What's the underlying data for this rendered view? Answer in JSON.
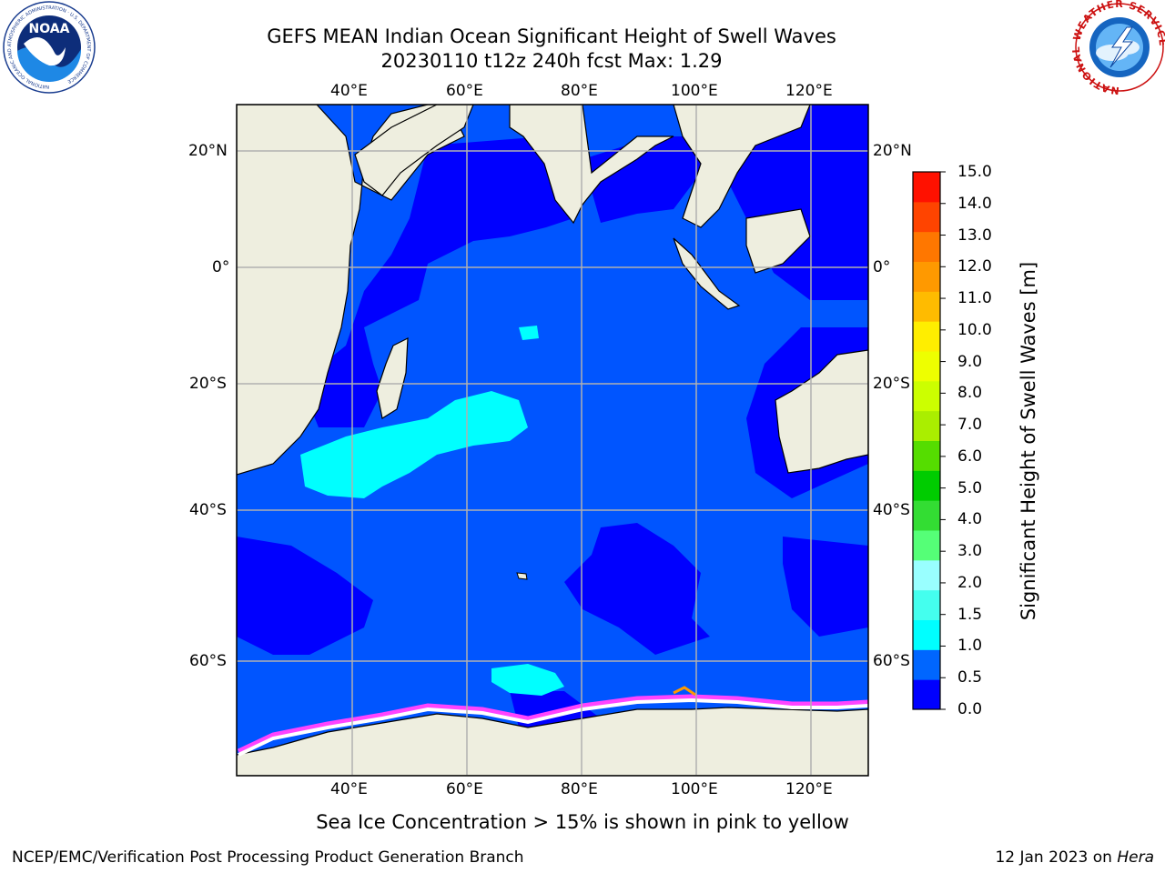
{
  "title": {
    "line1": "GEFS MEAN Indian Ocean Significant Height of Swell Waves",
    "line2": "20230110 t12z 240h fcst   Max: 1.29"
  },
  "map": {
    "lon_ticks": [
      "40°E",
      "60°E",
      "80°E",
      "100°E",
      "120°E"
    ],
    "lat_ticks": [
      "20°N",
      "0°",
      "20°S",
      "40°S",
      "60°S"
    ],
    "lon_values": [
      40,
      60,
      80,
      100,
      120
    ],
    "lat_values": [
      20,
      0,
      -20,
      -40,
      -60
    ],
    "lon_range": [
      20,
      130
    ],
    "lat_range": [
      -78,
      28
    ],
    "grid": true,
    "land_color": "#eeeedf",
    "ocean_color": "#0055ff"
  },
  "colorbar": {
    "label": "Significant Height of Swell Waves [m]",
    "ticks": [
      "15.0",
      "14.0",
      "13.0",
      "12.0",
      "11.0",
      "10.0",
      "9.0",
      "8.0",
      "7.0",
      "6.0",
      "5.0",
      "4.0",
      "3.0",
      "2.0",
      "1.5",
      "1.0",
      "0.5",
      "0.0"
    ],
    "colors": [
      "#0000ff",
      "#0066ff",
      "#00ffff",
      "#44ffee",
      "#99ffff",
      "#55ff77",
      "#33dd33",
      "#00cc00",
      "#55dd00",
      "#aaee00",
      "#ccff00",
      "#eeff00",
      "#ffee00",
      "#ffbb00",
      "#ff9900",
      "#ff7700",
      "#ff4400",
      "#ff1100"
    ]
  },
  "note": "Sea Ice Concentration > 15% is shown in pink to yellow",
  "footer": {
    "left": "NCEP/EMC/Verification Post Processing Product Generation Branch",
    "right_date": "12 Jan 2023 on ",
    "right_host": "Hera"
  },
  "logos": {
    "noaa": {
      "text": "NOAA",
      "ring_text": "NATIONAL OCEANIC AND ATMOSPHERIC ADMINISTRATION · U.S. DEPARTMENT OF COMMERCE"
    },
    "nws": {
      "ring_text": "NATIONAL WEATHER SERVICE"
    }
  }
}
